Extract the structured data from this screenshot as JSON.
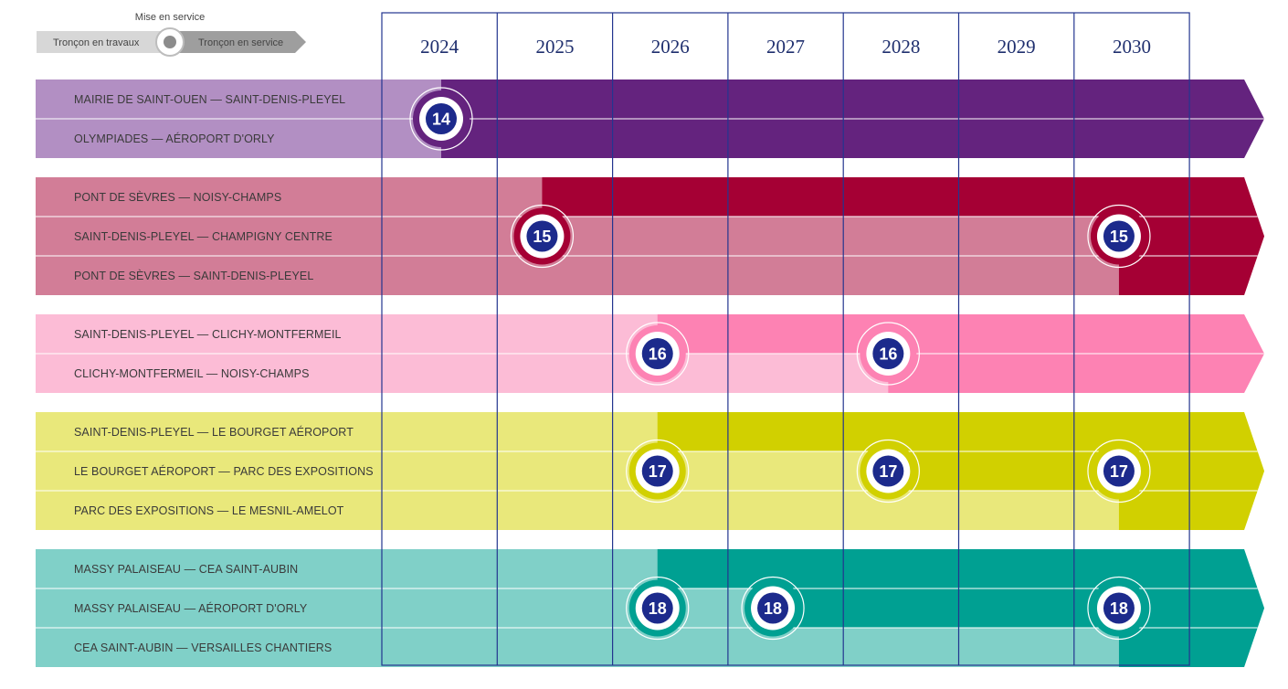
{
  "legend": {
    "commissioning_label": "Mise en service",
    "under_construction_label": "Tronçon en travaux",
    "in_service_label": "Tronçon en service"
  },
  "years": [
    "2024",
    "2025",
    "2026",
    "2027",
    "2028",
    "2029",
    "2030"
  ],
  "colors": {
    "grid": "#23358f",
    "badge_fill": "#1c2a8c",
    "legend_gray_light": "#d7d7d7",
    "legend_gray_dark": "#9e9e9e",
    "separator": "#ffffff"
  },
  "lines": [
    {
      "id": "14",
      "light_color": "#b28fc3",
      "dark_color": "#64237e",
      "segments": [
        {
          "label": "MAIRIE DE SAINT-OUEN  —  SAINT-DENIS-PLEYEL",
          "service_start": "2024"
        },
        {
          "label": "OLYMPIADES  —  AÉROPORT D'ORLY",
          "service_start": "2024"
        }
      ],
      "badges": [
        {
          "number": "14",
          "year": "2024"
        }
      ]
    },
    {
      "id": "15",
      "light_color": "#d27d97",
      "dark_color": "#a50034",
      "segments": [
        {
          "label": "PONT DE SÈVRES  —  NOISY-CHAMPS",
          "service_start": "2025"
        },
        {
          "label": "SAINT-DENIS-PLEYEL  —  CHAMPIGNY CENTRE",
          "service_start": "2030"
        },
        {
          "label": "PONT DE SÈVRES  —  SAINT-DENIS-PLEYEL",
          "service_start": "2030"
        }
      ],
      "badges": [
        {
          "number": "15",
          "year": "2025"
        },
        {
          "number": "15",
          "year": "2030"
        }
      ]
    },
    {
      "id": "16",
      "light_color": "#fcbcd6",
      "dark_color": "#fd82b3",
      "segments": [
        {
          "label": "SAINT-DENIS-PLEYEL  —  CLICHY-MONTFERMEIL",
          "service_start": "2026"
        },
        {
          "label": "CLICHY-MONTFERMEIL  —  NOISY-CHAMPS",
          "service_start": "2028"
        }
      ],
      "badges": [
        {
          "number": "16",
          "year": "2026"
        },
        {
          "number": "16",
          "year": "2028"
        }
      ]
    },
    {
      "id": "17",
      "light_color": "#e9e87b",
      "dark_color": "#d1d000",
      "segments": [
        {
          "label": "SAINT-DENIS-PLEYEL  —  LE BOURGET AÉROPORT",
          "service_start": "2026"
        },
        {
          "label": "LE BOURGET AÉROPORT  —  PARC DES EXPOSITIONS",
          "service_start": "2028"
        },
        {
          "label": "PARC DES EXPOSITIONS  —  LE MESNIL-AMELOT",
          "service_start": "2030"
        }
      ],
      "badges": [
        {
          "number": "17",
          "year": "2026"
        },
        {
          "number": "17",
          "year": "2028"
        },
        {
          "number": "17",
          "year": "2030"
        }
      ]
    },
    {
      "id": "18",
      "light_color": "#80d0c8",
      "dark_color": "#00a092",
      "segments": [
        {
          "label": "MASSY PALAISEAU  —  CEA SAINT-AUBIN",
          "service_start": "2026"
        },
        {
          "label": "MASSY PALAISEAU  —  AÉROPORT D'ORLY",
          "service_start": "2027"
        },
        {
          "label": "CEA SAINT-AUBIN  —  VERSAILLES CHANTIERS",
          "service_start": "2030"
        }
      ],
      "badges": [
        {
          "number": "18",
          "year": "2026"
        },
        {
          "number": "18",
          "year": "2027"
        },
        {
          "number": "18",
          "year": "2030"
        }
      ]
    }
  ]
}
